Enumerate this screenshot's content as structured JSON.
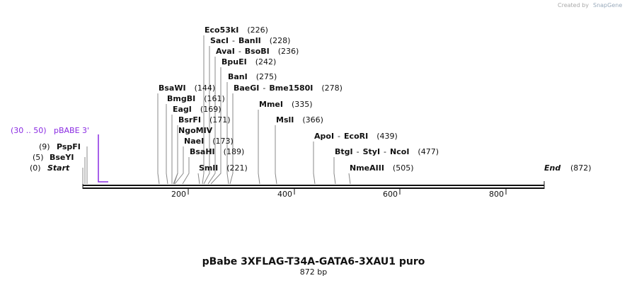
{
  "credit": {
    "text": "Created by",
    "brand": "SnapGene"
  },
  "separator": "-",
  "enzymes": [
    {
      "names": [
        "Eco53kI"
      ],
      "position": "(226)"
    },
    {
      "names": [
        "SacI",
        "BanII"
      ],
      "position": "(228)"
    },
    {
      "names": [
        "AvaI",
        "BsoBI"
      ],
      "position": "(236)"
    },
    {
      "names": [
        "BpuEI"
      ],
      "position": "(242)"
    },
    {
      "names": [
        "BanI"
      ],
      "position": "(275)"
    },
    {
      "names": [
        "BaeGI",
        "Bme1580I"
      ],
      "position": "(278)"
    },
    {
      "names": [
        "BsaWI"
      ],
      "position": "(144)"
    },
    {
      "names": [
        "BmgBI"
      ],
      "position": "(161)"
    },
    {
      "names": [
        "EagI"
      ],
      "position": "(169)"
    },
    {
      "names": [
        "BsrFI"
      ],
      "position": "(171)"
    },
    {
      "names": [
        "NgoMIV"
      ]
    },
    {
      "names": [
        "NaeI"
      ],
      "position": "(173)"
    },
    {
      "names": [
        "BsaHI"
      ],
      "position": "(189)"
    },
    {
      "names": [
        "SmlI"
      ],
      "position": "(221)"
    },
    {
      "names": [
        "MmeI"
      ],
      "position": "(335)"
    },
    {
      "names": [
        "MslI"
      ],
      "position": "(366)"
    },
    {
      "names": [
        "ApoI",
        "EcoRI"
      ],
      "position": "(439)"
    },
    {
      "names": [
        "BtgI",
        "StyI",
        "NcoI"
      ],
      "position": "(477)"
    },
    {
      "names": [
        "NmeAIII"
      ],
      "position": "(505)"
    }
  ],
  "left_labels": [
    {
      "position": "(9)",
      "name": "PspFI"
    },
    {
      "position": "(5)",
      "name": "BseYI"
    },
    {
      "position": "(0)",
      "name": "Start"
    }
  ],
  "end": {
    "name": "End",
    "position": "(872)"
  },
  "feature": {
    "range": "(30 .. 50)",
    "name": "pBABE 3'"
  },
  "ticks": [
    "200",
    "400",
    "600",
    "800"
  ],
  "title": "pBabe 3XFLAG-T34A-GATA6-3XAU1 puro",
  "length": "872 bp"
}
